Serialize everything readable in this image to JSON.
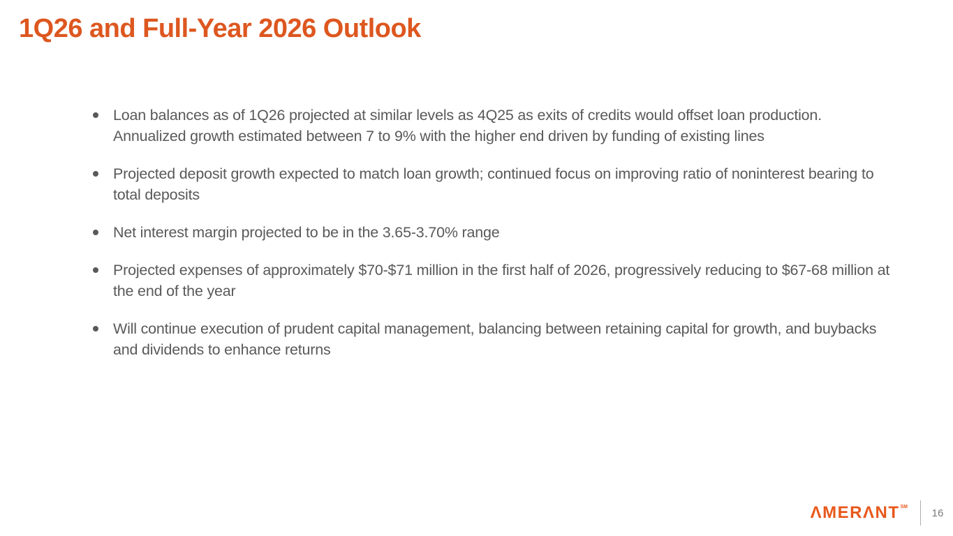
{
  "slide": {
    "title": "1Q26 and Full-Year 2026 Outlook",
    "bullets": [
      "Loan balances as of 1Q26 projected at similar levels as 4Q25 as exits of credits would offset loan production. Annualized growth estimated between 7 to 9% with the higher end driven by funding of existing lines",
      "Projected deposit growth expected to match loan growth; continued focus on improving ratio of noninterest bearing to total deposits",
      "Net interest margin projected to be in the 3.65-3.70% range",
      "Projected expenses of approximately $70-$71 million in the first half of 2026, progressively reducing to $67-68 million at the end of the year",
      "Will continue execution of prudent capital management, balancing between retaining capital for growth, and buybacks and dividends to enhance returns"
    ],
    "footer": {
      "logo_text": "ΛMERΛNT",
      "logo_mark": "SM",
      "page_number": "16"
    },
    "colors": {
      "accent_orange": "#DD571F",
      "logo_orange": "#E8581C",
      "body_text": "#595959",
      "page_number_gray": "#7A7A7A",
      "divider_gray": "#ADADAD"
    }
  }
}
